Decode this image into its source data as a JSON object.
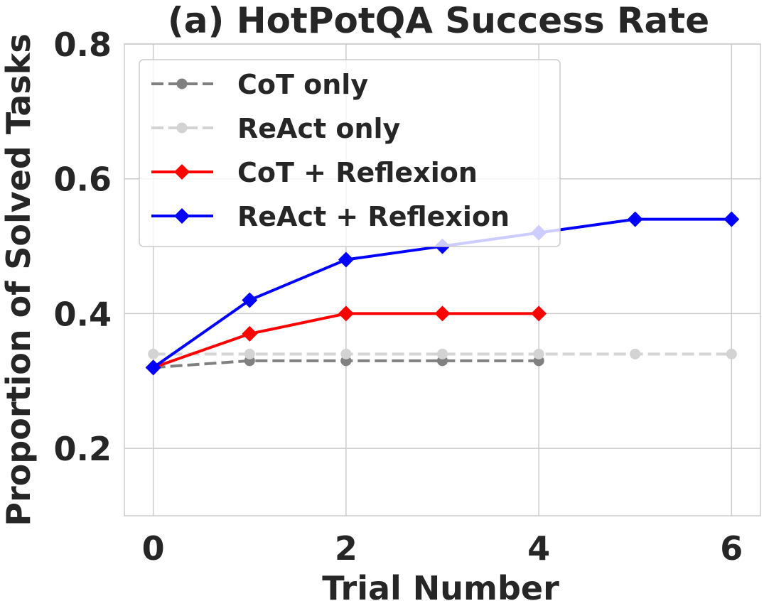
{
  "chart_data": {
    "type": "line",
    "title": "(a) HotPotQA Success Rate",
    "xlabel": "Trial Number",
    "ylabel": "Proportion of Solved Tasks",
    "xlim": [
      -0.3,
      6.3
    ],
    "ylim": [
      0.1,
      0.8
    ],
    "xticks": [
      0,
      2,
      4,
      6
    ],
    "yticks": [
      0.2,
      0.4,
      0.6,
      0.8
    ],
    "xtick_labels": [
      "0",
      "2",
      "4",
      "6"
    ],
    "ytick_labels": [
      "0.2",
      "0.4",
      "0.6",
      "0.8"
    ],
    "grid": true,
    "legend_position": "upper-left",
    "series": [
      {
        "name": "CoT only",
        "color": "#808080",
        "dash": "dashed",
        "marker": "circle",
        "x": [
          0,
          1,
          2,
          3,
          4
        ],
        "y": [
          0.32,
          0.33,
          0.33,
          0.33,
          0.33
        ]
      },
      {
        "name": "ReAct only",
        "color": "#d3d3d3",
        "dash": "dashed",
        "marker": "circle",
        "x": [
          0,
          1,
          2,
          3,
          4,
          5,
          6
        ],
        "y": [
          0.34,
          0.34,
          0.34,
          0.34,
          0.34,
          0.34,
          0.34
        ]
      },
      {
        "name": "CoT + Reflexion",
        "color": "#ff0000",
        "dash": "solid",
        "marker": "diamond",
        "x": [
          0,
          1,
          2,
          3,
          4
        ],
        "y": [
          0.32,
          0.37,
          0.4,
          0.4,
          0.4
        ]
      },
      {
        "name": "ReAct + Reflexion",
        "color": "#0000ff",
        "dash": "solid",
        "marker": "diamond",
        "x": [
          0,
          1,
          2,
          3,
          4,
          5,
          6
        ],
        "y": [
          0.32,
          0.42,
          0.48,
          0.5,
          0.52,
          0.54,
          0.54
        ]
      }
    ]
  }
}
